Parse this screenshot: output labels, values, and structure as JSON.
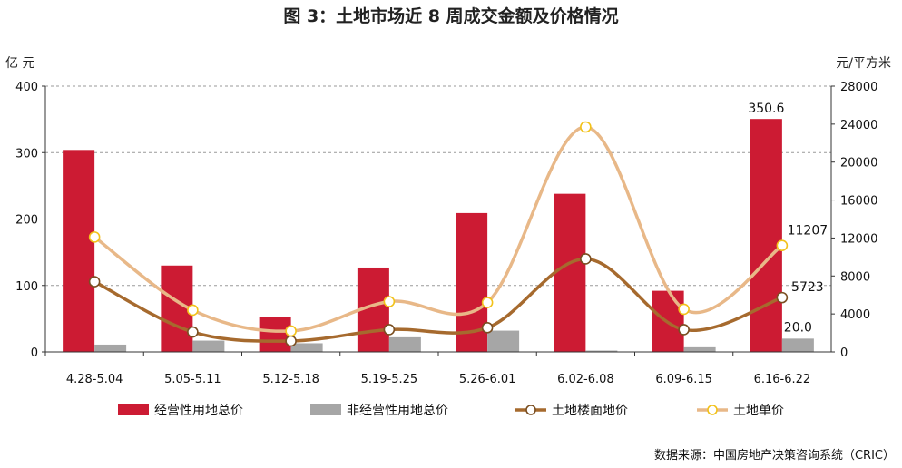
{
  "chart_data": {
    "type": "bar",
    "title": "图 3：土地市场近 8 周成交金额及价格情况",
    "categories": [
      "4.28-5.04",
      "5.05-5.11",
      "5.12-5.18",
      "5.19-5.25",
      "5.26-6.01",
      "6.02-6.08",
      "6.09-6.15",
      "6.16-6.22"
    ],
    "left_axis": {
      "unit": "亿 元",
      "ylim": [
        0,
        400
      ],
      "ticks": [
        0,
        100,
        200,
        300,
        400
      ]
    },
    "right_axis": {
      "unit": "元/平方米",
      "ylim": [
        0,
        28000
      ],
      "ticks": [
        0,
        4000,
        8000,
        12000,
        16000,
        20000,
        24000,
        28000
      ]
    },
    "grid": "dashed horizontal",
    "legend_position": "bottom",
    "series": [
      {
        "name": "经营性用地总价",
        "kind": "bar",
        "axis": "left",
        "color": "#cc1b33",
        "values": [
          304,
          130,
          52,
          127,
          209,
          238,
          92,
          350.6
        ]
      },
      {
        "name": "非经营性用地总价",
        "kind": "bar",
        "axis": "left",
        "color": "#a6a6a6",
        "values": [
          11,
          17,
          13,
          22,
          32,
          2,
          7,
          20.0
        ]
      },
      {
        "name": "土地楼面地价",
        "kind": "line",
        "axis": "right",
        "color": "#a66a2e",
        "values": [
          7400,
          2100,
          1150,
          2350,
          2550,
          9800,
          2350,
          5723
        ]
      },
      {
        "name": "土地单价",
        "kind": "line",
        "axis": "right",
        "color": "#e8b888",
        "values": [
          12100,
          4400,
          2200,
          5300,
          5200,
          23700,
          4500,
          11207
        ]
      }
    ],
    "data_labels": [
      {
        "text": "350.6",
        "series": 0,
        "index": 7
      },
      {
        "text": "20.0",
        "series": 1,
        "index": 7
      },
      {
        "text": "5723",
        "series": 2,
        "index": 7
      },
      {
        "text": "11207",
        "series": 3,
        "index": 7
      }
    ],
    "source": "数据来源：中国房地产决策咨询系统（CRIC）"
  }
}
